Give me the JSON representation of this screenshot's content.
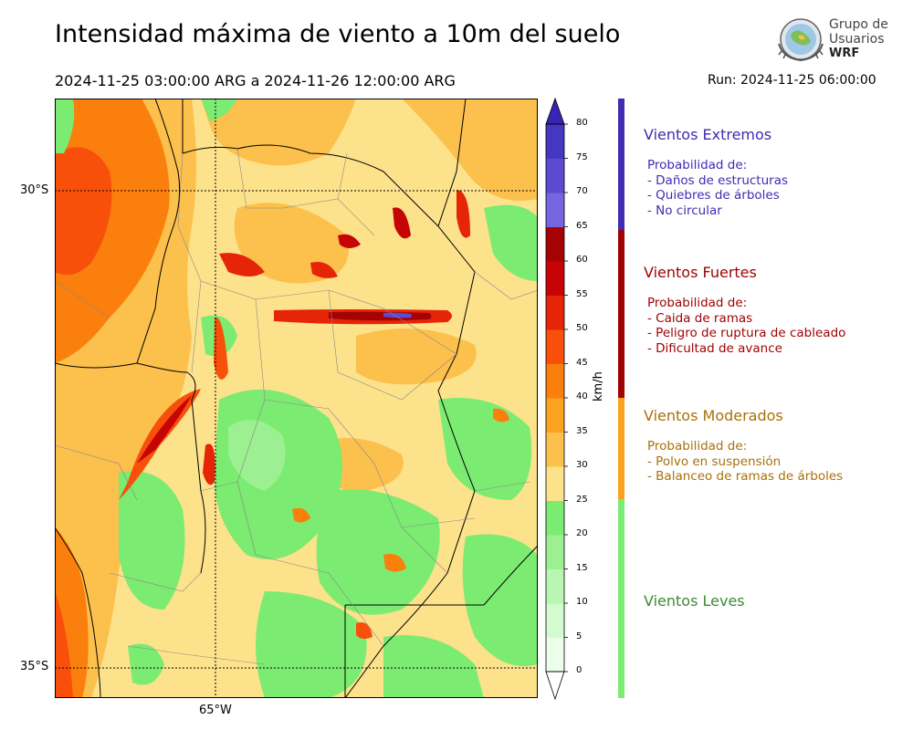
{
  "title": "Intensidad máxima de viento a 10m del suelo",
  "period": "2024-11-25 03:00:00 ARG  a  2024-11-26 12:00:00 ARG",
  "run": "Run: 2024-11-25 06:00:00",
  "logo": {
    "line1": "Grupo de",
    "line2": "Usuarios",
    "line3": "WRF"
  },
  "map": {
    "lat_labels": [
      "30°S",
      "35°S"
    ],
    "lon_labels": [
      "65°W"
    ]
  },
  "colorbar": {
    "unit": "km/h",
    "ticks": [
      "0",
      "5",
      "10",
      "15",
      "20",
      "25",
      "30",
      "35",
      "40",
      "45",
      "50",
      "55",
      "60",
      "65",
      "70",
      "75",
      "80"
    ],
    "colors": [
      "#ecfeea",
      "#d3fbcf",
      "#b8f6b2",
      "#9cf091",
      "#7ceb72",
      "#fde28c",
      "#fcc04d",
      "#fba21e",
      "#fb7f0c",
      "#f8500b",
      "#e62508",
      "#c70405",
      "#a50303",
      "#7565de",
      "#5d4ad0",
      "#4537bf",
      "#2f1fae"
    ],
    "extend_colors": {
      "min": "#ffffff",
      "max": "#3a24b5"
    }
  },
  "categories": [
    {
      "name": "Vientos Extremos",
      "color": "#3e2cb2",
      "lines": [
        "Probabilidad de:",
        "- Daños de estructuras",
        "- Quiebres de árboles",
        "- No circular"
      ]
    },
    {
      "name": "Vientos Fuertes",
      "color": "#a00303",
      "lines": [
        "Probabilidad de:",
        "- Caida de ramas",
        "- Peligro de ruptura de cableado",
        "- Dificultad de avance"
      ]
    },
    {
      "name": "Vientos Moderados",
      "color": "#a8700a",
      "lines": [
        "Probabilidad de:",
        "- Polvo en suspensión",
        "- Balanceo de ramas de árboles"
      ]
    },
    {
      "name": "Vientos Leves",
      "color": "#3d8a32",
      "lines": []
    }
  ],
  "category_bar_colors": [
    "#3e2cb2",
    "#a00303",
    "#fba21e",
    "#7ceb72"
  ]
}
